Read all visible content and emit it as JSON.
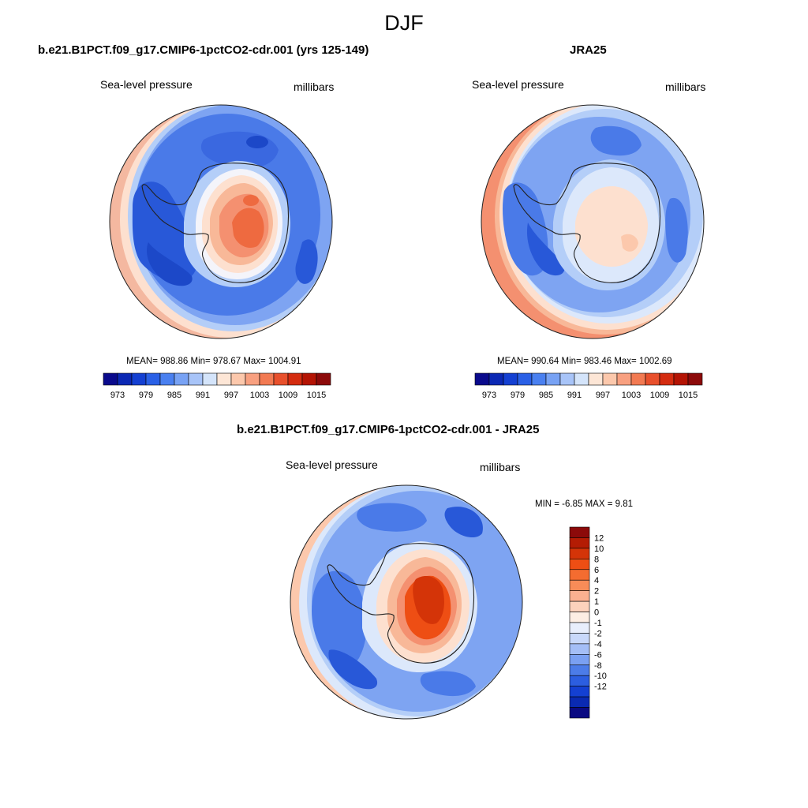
{
  "figure_title": "DJF",
  "panels": {
    "model": {
      "title": "b.e21.B1PCT.f09_g17.CMIP6-1pctCO2-cdr.001 (yrs 125-149)",
      "left_label": "Sea-level pressure",
      "right_label": "millibars",
      "stats": "MEAN= 988.86  Min= 978.67  Max= 1004.91"
    },
    "obs": {
      "title": "JRA25",
      "left_label": "Sea-level pressure",
      "right_label": "millibars",
      "stats": "MEAN= 990.64  Min= 983.46  Max= 1002.69"
    },
    "diff": {
      "title": "b.e21.B1PCT.f09_g17.CMIP6-1pctCO2-cdr.001 - JRA25",
      "left_label": "Sea-level pressure",
      "right_label": "millibars",
      "stats": "MIN =  -6.85 MAX =   9.81"
    }
  },
  "colorbars": {
    "absolute": {
      "orientation": "horizontal",
      "colors": [
        "#0a0a8c",
        "#0b28b4",
        "#1440d2",
        "#2a60e6",
        "#4a80f0",
        "#78a2f4",
        "#a8c4f8",
        "#d4e4fa",
        "#fde6d6",
        "#fcc8ac",
        "#f8a080",
        "#f27a52",
        "#e8502c",
        "#d42c10",
        "#b41404",
        "#8c0a0a"
      ],
      "tick_labels": [
        "973",
        "979",
        "985",
        "991",
        "997",
        "1003",
        "1009",
        "1015"
      ]
    },
    "difference": {
      "orientation": "vertical",
      "colors": [
        "#8c0a0a",
        "#b41c04",
        "#d43408",
        "#ee4e14",
        "#f46c30",
        "#f88c58",
        "#fab090",
        "#fcd2bc",
        "#fdeee4",
        "#e8eefc",
        "#c8d8fa",
        "#a4bef6",
        "#7aa0f2",
        "#4c7ce8",
        "#2c5ee0",
        "#1440d2",
        "#0a2ab2",
        "#0a0a82"
      ],
      "tick_labels": [
        "12",
        "10",
        "8",
        "6",
        "4",
        "2",
        "1",
        "0",
        "-1",
        "-2",
        "-4",
        "-6",
        "-8",
        "-10",
        "-12"
      ]
    }
  },
  "palette": {
    "deep_blue": "#2858d8",
    "mid_blue": "#4a7ae8",
    "light_blue": "#7ea4f2",
    "pale_blue": "#b4cef8",
    "very_pale_blue": "#dce8fb",
    "white_ish": "#f4f4fa",
    "pale_red": "#fde0cf",
    "light_red": "#f8b898",
    "mid_red": "#f49070",
    "red": "#ee6a40",
    "deep_red": "#e04818",
    "outline": "#222222"
  }
}
